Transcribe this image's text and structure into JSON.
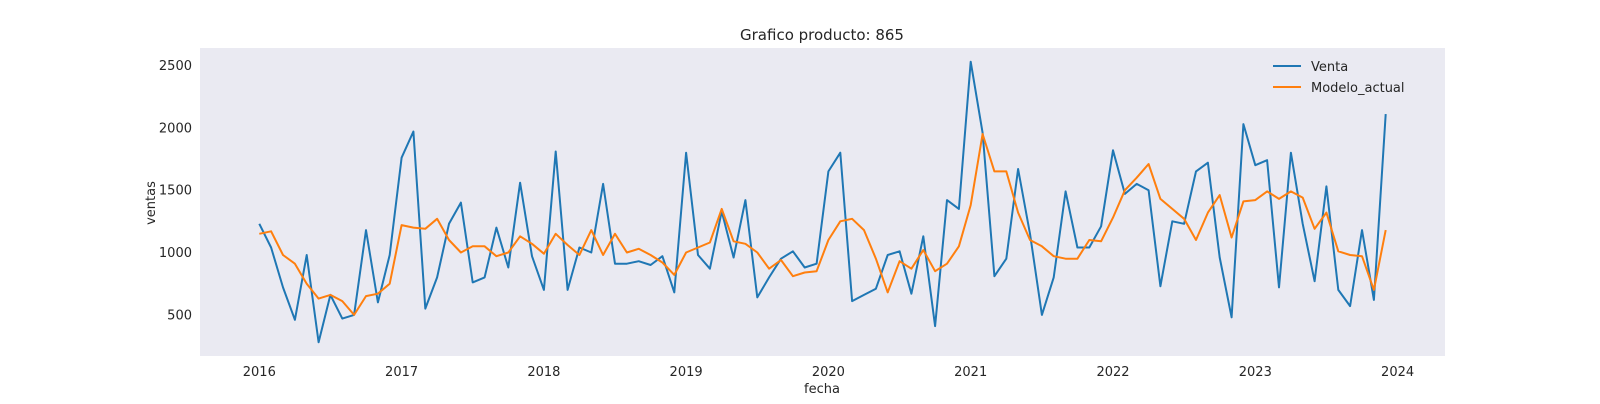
{
  "chart_data": {
    "type": "line",
    "title": "Grafico producto: 865",
    "xlabel": "fecha",
    "ylabel": "ventas",
    "x_ticks": [
      "2016",
      "2017",
      "2018",
      "2019",
      "2020",
      "2021",
      "2022",
      "2023",
      "2024"
    ],
    "y_ticks": [
      500,
      1000,
      1500,
      2000,
      2500
    ],
    "xlim": [
      "2015-08",
      "2024-05"
    ],
    "ylim": [
      170,
      2640
    ],
    "grid": false,
    "legend": "top-right",
    "x_start": "2016-01",
    "x_step": "month",
    "series": [
      {
        "name": "Venta",
        "color": "#1f77b4",
        "values": [
          1230,
          1040,
          720,
          460,
          980,
          280,
          660,
          470,
          500,
          1180,
          600,
          980,
          1760,
          1970,
          550,
          800,
          1230,
          1400,
          760,
          800,
          1200,
          880,
          1560,
          970,
          700,
          1810,
          700,
          1040,
          1000,
          1550,
          910,
          910,
          930,
          900,
          970,
          680,
          1800,
          980,
          870,
          1330,
          960,
          1420,
          640,
          800,
          950,
          1010,
          880,
          910,
          1650,
          1800,
          610,
          660,
          710,
          980,
          1010,
          670,
          1130,
          410,
          1420,
          1350,
          2530,
          1960,
          810,
          950,
          1670,
          1150,
          500,
          800,
          1490,
          1040,
          1040,
          1210,
          1820,
          1470,
          1550,
          1500,
          730,
          1250,
          1230,
          1650,
          1720,
          960,
          480,
          2030,
          1700,
          1740,
          720,
          1800,
          1230,
          770,
          1530,
          700,
          570,
          1180,
          620,
          2110
        ]
      },
      {
        "name": "Modelo_actual",
        "color": "#ff7f0e",
        "values": [
          1150,
          1170,
          980,
          910,
          750,
          630,
          660,
          610,
          500,
          650,
          670,
          750,
          1220,
          1200,
          1190,
          1270,
          1100,
          1000,
          1050,
          1050,
          970,
          1000,
          1130,
          1070,
          990,
          1150,
          1060,
          980,
          1180,
          980,
          1150,
          1000,
          1030,
          980,
          920,
          820,
          1000,
          1040,
          1080,
          1350,
          1090,
          1070,
          1000,
          870,
          940,
          810,
          840,
          850,
          1100,
          1250,
          1270,
          1180,
          950,
          680,
          930,
          870,
          1020,
          850,
          910,
          1050,
          1380,
          1950,
          1650,
          1650,
          1320,
          1100,
          1050,
          970,
          950,
          950,
          1100,
          1090,
          1280,
          1500,
          1600,
          1710,
          1430,
          1350,
          1270,
          1100,
          1320,
          1460,
          1120,
          1410,
          1420,
          1490,
          1430,
          1490,
          1440,
          1190,
          1320,
          1010,
          980,
          970,
          700,
          1180
        ]
      }
    ]
  }
}
